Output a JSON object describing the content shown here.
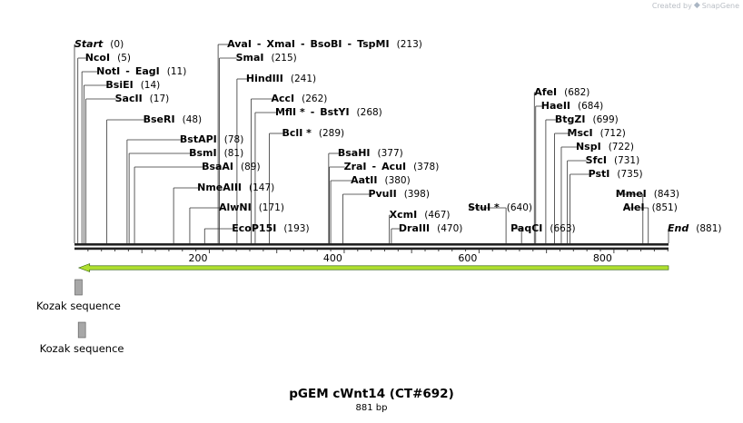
{
  "credit": {
    "text": "Created by",
    "brand": "SnapGene",
    "logo_icon": "snapgene-logo-icon"
  },
  "title": "pGEM cWnt14 (CT#692)",
  "subtitle": "881 bp",
  "sequence_length": 881,
  "axis": {
    "ticks": [
      200,
      400,
      600,
      800
    ]
  },
  "features": [
    {
      "id": "arrow",
      "type": "orf-arrow",
      "start": 1,
      "end": 881,
      "direction": "reverse",
      "color": "#b0e030"
    },
    {
      "id": "kozak1",
      "type": "box",
      "label": "Kozak sequence",
      "position": 6,
      "color": "#a7a7a7"
    },
    {
      "id": "kozak2",
      "type": "box",
      "label": "Kozak sequence",
      "position": 11,
      "color": "#a7a7a7"
    }
  ],
  "sites": [
    {
      "names": [
        "Start"
      ],
      "pos": 0,
      "italic": true
    },
    {
      "names": [
        "NcoI"
      ],
      "pos": 5
    },
    {
      "names": [
        "NotI",
        "EagI"
      ],
      "pos": 11
    },
    {
      "names": [
        "BsiEI"
      ],
      "pos": 14
    },
    {
      "names": [
        "SacII"
      ],
      "pos": 17
    },
    {
      "names": [
        "BseRI"
      ],
      "pos": 48
    },
    {
      "names": [
        "BstAPI"
      ],
      "pos": 78
    },
    {
      "names": [
        "BsmI"
      ],
      "pos": 81
    },
    {
      "names": [
        "BsaAI"
      ],
      "pos": 89
    },
    {
      "names": [
        "NmeAIII"
      ],
      "pos": 147
    },
    {
      "names": [
        "AlwNI"
      ],
      "pos": 171
    },
    {
      "names": [
        "EcoP15I"
      ],
      "pos": 193
    },
    {
      "names": [
        "AvaI",
        "XmaI",
        "BsoBI",
        "TspMI"
      ],
      "pos": 213
    },
    {
      "names": [
        "SmaI"
      ],
      "pos": 215
    },
    {
      "names": [
        "HindIII"
      ],
      "pos": 241
    },
    {
      "names": [
        "AccI"
      ],
      "pos": 262
    },
    {
      "names": [
        "MflI *",
        "BstYI"
      ],
      "pos": 268
    },
    {
      "names": [
        "BclI *"
      ],
      "pos": 289
    },
    {
      "names": [
        "BsaHI"
      ],
      "pos": 377
    },
    {
      "names": [
        "ZraI",
        "AcuI"
      ],
      "pos": 378
    },
    {
      "names": [
        "AatII"
      ],
      "pos": 380
    },
    {
      "names": [
        "PvuII"
      ],
      "pos": 398
    },
    {
      "names": [
        "XcmI"
      ],
      "pos": 467
    },
    {
      "names": [
        "DraIII"
      ],
      "pos": 470
    },
    {
      "names": [
        "StuI *"
      ],
      "pos": 640
    },
    {
      "names": [
        "PaqCI"
      ],
      "pos": 663
    },
    {
      "names": [
        "AfeI"
      ],
      "pos": 682
    },
    {
      "names": [
        "HaeII"
      ],
      "pos": 684
    },
    {
      "names": [
        "BtgZI"
      ],
      "pos": 699
    },
    {
      "names": [
        "MscI"
      ],
      "pos": 712
    },
    {
      "names": [
        "NspI"
      ],
      "pos": 722
    },
    {
      "names": [
        "SfcI"
      ],
      "pos": 731
    },
    {
      "names": [
        "PstI"
      ],
      "pos": 735
    },
    {
      "names": [
        "MmeI"
      ],
      "pos": 843
    },
    {
      "names": [
        "AleI"
      ],
      "pos": 851
    },
    {
      "names": [
        "End"
      ],
      "pos": 881,
      "italic": true
    }
  ]
}
